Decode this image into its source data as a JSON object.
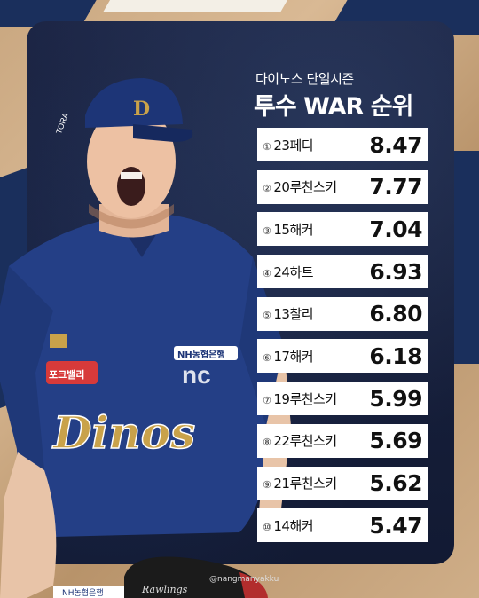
{
  "header": {
    "subtitle": "다이노스 단일시즌",
    "title": "투수 WAR 순위"
  },
  "ranking": [
    {
      "rank": "①",
      "name": "23페디",
      "war": "8.47"
    },
    {
      "rank": "②",
      "name": "20루친스키",
      "war": "7.77"
    },
    {
      "rank": "③",
      "name": "15해커",
      "war": "7.04"
    },
    {
      "rank": "④",
      "name": "24하트",
      "war": "6.93"
    },
    {
      "rank": "⑤",
      "name": "13찰리",
      "war": "6.80"
    },
    {
      "rank": "⑥",
      "name": "17해커",
      "war": "6.18"
    },
    {
      "rank": "⑦",
      "name": "19루친스키",
      "war": "5.99"
    },
    {
      "rank": "⑧",
      "name": "22루친스키",
      "war": "5.69"
    },
    {
      "rank": "⑨",
      "name": "21루친스키",
      "war": "5.62"
    },
    {
      "rank": "⑩",
      "name": "14해커",
      "war": "5.47"
    }
  ],
  "photo": {
    "jersey_text": "Dinos",
    "cap_logo": "D",
    "sleeve_logo": "nc",
    "sponsor": "NH농협은행",
    "patch": "포크밸리",
    "glove_brand": "Rawlings",
    "cap_side_text": "TORA"
  },
  "credit": "@nangmanyakku",
  "colors": {
    "navy": "#1a2f5c",
    "card": "#121a33",
    "gold": "#c9a24a",
    "row_bg": "#ffffff"
  }
}
